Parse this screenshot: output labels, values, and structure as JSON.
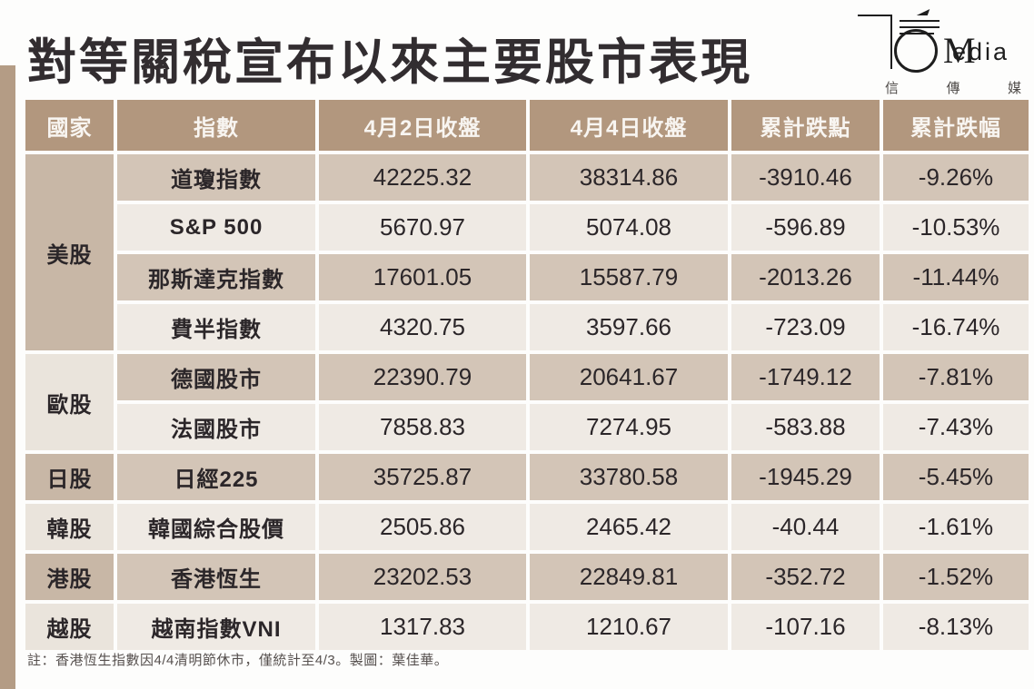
{
  "page": {
    "title": "對等關稅宣布以來主要股市表現",
    "footnote": "註：香港恆生指數因4/4清明節休市，僅統計至4/3。製圖：葉佳華。"
  },
  "logo": {
    "monogram": "M",
    "brand_rest": "edia",
    "subtitle": "信 傳 媒"
  },
  "colors": {
    "header_bg": "#b2977e",
    "row_dark": "#d3c5b7",
    "row_light": "#efeae4",
    "country_dark": "#c8b7a6",
    "country_light": "#eae4dc",
    "accent_stripe": "#b49c85",
    "text": "#2b2629"
  },
  "chart_data": {
    "type": "table",
    "title": "對等關稅宣布以來主要股市表現",
    "columns": [
      "國家",
      "指數",
      "4月2日收盤",
      "4月4日收盤",
      "累計跌點",
      "累計跌幅"
    ],
    "rows": [
      [
        "美股",
        "道瓊指數",
        "42225.32",
        "38314.86",
        "-3910.46",
        "-9.26%"
      ],
      [
        "美股",
        "S&P 500",
        "5670.97",
        "5074.08",
        "-596.89",
        "-10.53%"
      ],
      [
        "美股",
        "那斯達克指數",
        "17601.05",
        "15587.79",
        "-2013.26",
        "-11.44%"
      ],
      [
        "美股",
        "費半指數",
        "4320.75",
        "3597.66",
        "-723.09",
        "-16.74%"
      ],
      [
        "歐股",
        "德國股市",
        "22390.79",
        "20641.67",
        "-1749.12",
        "-7.81%"
      ],
      [
        "歐股",
        "法國股市",
        "7858.83",
        "7274.95",
        "-583.88",
        "-7.43%"
      ],
      [
        "日股",
        "日經225",
        "35725.87",
        "33780.58",
        "-1945.29",
        "-5.45%"
      ],
      [
        "韓股",
        "韓國綜合股價",
        "2505.86",
        "2465.42",
        "-40.44",
        "-1.61%"
      ],
      [
        "港股",
        "香港恆生",
        "23202.53",
        "22849.81",
        "-352.72",
        "-1.52%"
      ],
      [
        "越股",
        "越南指數VNI",
        "1317.83",
        "1210.67",
        "-107.16",
        "-8.13%"
      ]
    ],
    "note": "註：香港恆生指數因4/4清明節休市，僅統計至4/3。製圖：葉佳華。"
  }
}
